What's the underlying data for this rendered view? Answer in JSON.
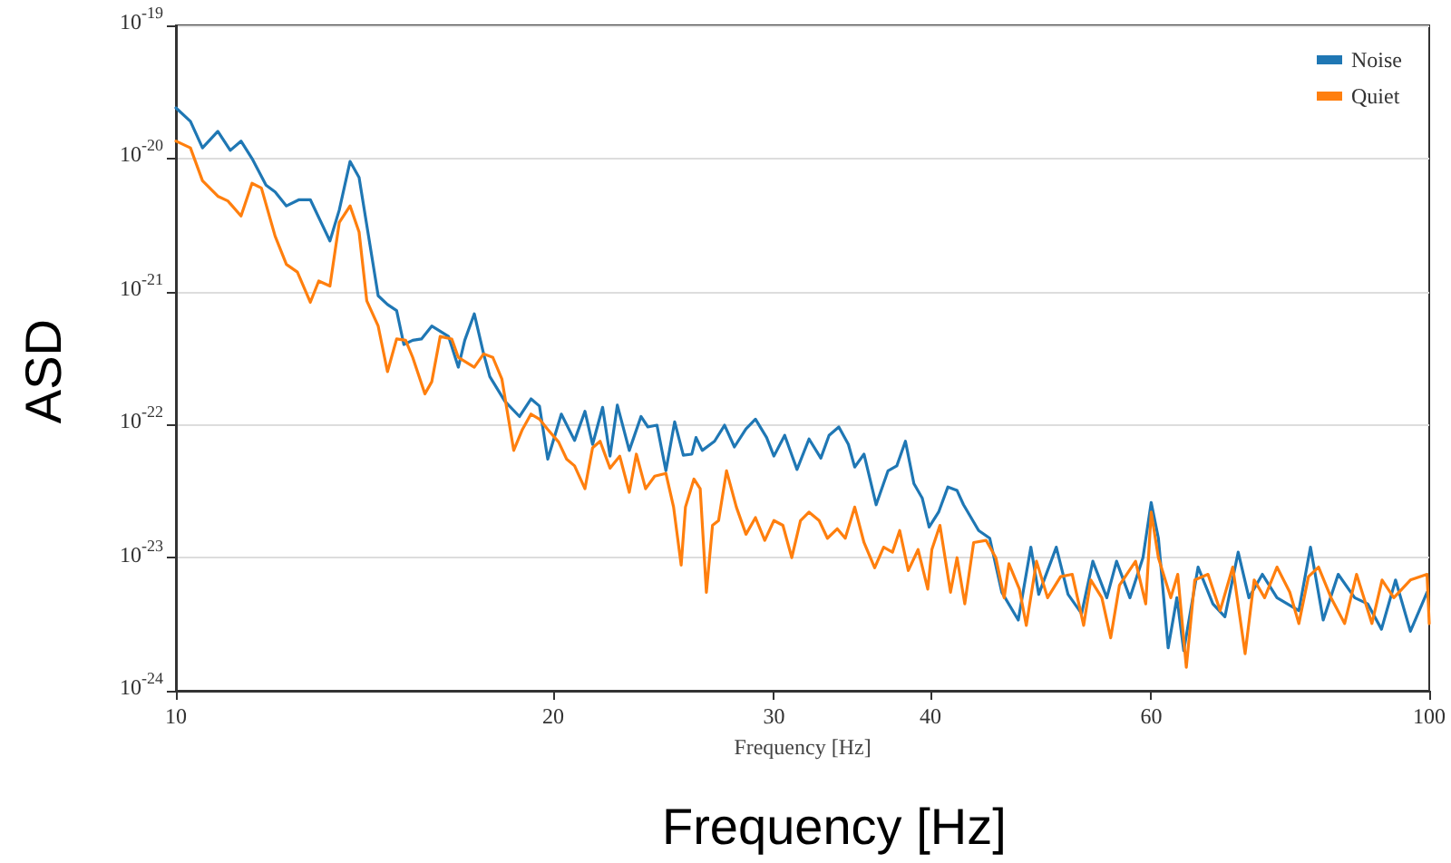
{
  "chart_data": {
    "type": "line",
    "xlabel": "Frequency [Hz]",
    "ylabel": "ASD",
    "annotations": [
      "Frequency [Hz]"
    ],
    "log": "xy",
    "grid": "y",
    "legend": "top right",
    "line_style": "solid",
    "marker": "none",
    "xlim": [
      10,
      100
    ],
    "xticks": [
      10,
      20,
      30,
      40,
      60,
      100
    ],
    "ylim": [
      1e-24,
      1e-19
    ],
    "yticks": [
      {
        "value": 1e-24,
        "label": "10$^{-24}$"
      },
      {
        "value": 1e-23,
        "label": "10$^{-23}$"
      },
      {
        "value": 1e-22,
        "label": "10$^{-22}$"
      },
      {
        "value": 1e-21,
        "label": "10$^{-21}$"
      },
      {
        "value": 1e-20,
        "label": "10$^{-20}$"
      },
      {
        "value": 1e-19,
        "label": "10$^{-19}$"
      }
    ],
    "series": [
      {
        "name": "Noise",
        "color": "#1f77b4",
        "x": [
          10,
          10.27,
          10.5,
          10.8,
          11.05,
          11.27,
          11.5,
          11.8,
          12.0,
          12.25,
          12.54,
          12.8,
          13.27,
          13.5,
          13.77,
          14.0,
          14.5,
          14.75,
          15.0,
          15.2,
          15.45,
          15.7,
          16.0,
          16.5,
          16.8,
          17.0,
          17.3,
          17.6,
          17.8,
          18.3,
          18.8,
          19.2,
          19.5,
          19.8,
          20.3,
          20.8,
          21.2,
          21.5,
          21.9,
          22.2,
          22.5,
          23.0,
          23.5,
          23.8,
          24.2,
          24.6,
          25.0,
          25.4,
          25.8,
          26.0,
          26.3,
          26.9,
          27.4,
          27.9,
          28.5,
          29.0,
          29.6,
          30.0,
          30.6,
          31.3,
          32.0,
          32.7,
          33.2,
          33.8,
          34.4,
          34.8,
          35.4,
          36.2,
          37.0,
          37.6,
          38.2,
          38.8,
          39.4,
          39.9,
          40.6,
          41.3,
          42.0,
          42.5,
          43.7,
          44.6,
          45.6,
          47.0,
          48.1,
          48.8,
          50.4,
          51.5,
          52.8,
          53.9,
          55.3,
          56.3,
          57.7,
          59.1,
          60.0,
          60.8,
          61.9,
          62.9,
          63.7,
          65.4,
          67.2,
          68.7,
          70.4,
          71.8,
          73.6,
          75.6,
          78.7,
          80.4,
          82.3,
          84.6,
          87.2,
          89.3,
          91.6,
          94.0,
          96.6,
          99.6
        ],
        "values": [
          2.4e-20,
          1.9e-20,
          1.2e-20,
          1.6e-20,
          1.15e-20,
          1.35e-20,
          1e-20,
          6.3e-21,
          5.6e-21,
          4.4e-21,
          4.9e-21,
          4.9e-21,
          2.4e-21,
          4.1e-21,
          9.5e-21,
          7.2e-21,
          9.3e-22,
          8e-22,
          7.2e-22,
          4e-22,
          4.3e-22,
          4.4e-22,
          5.5e-22,
          4.6e-22,
          2.7e-22,
          4.3e-22,
          6.8e-22,
          3.4e-22,
          2.3e-22,
          1.5e-22,
          1.15e-22,
          1.56e-22,
          1.38e-22,
          5.5e-23,
          1.2e-22,
          7.6e-23,
          1.26e-22,
          7.1e-23,
          1.35e-22,
          5.8e-23,
          1.4e-22,
          6.4e-23,
          1.15e-22,
          9.6e-23,
          9.9e-23,
          4.5e-23,
          1.05e-22,
          5.9e-23,
          6e-23,
          8e-23,
          6.4e-23,
          7.5e-23,
          9.9e-23,
          6.8e-23,
          9.3e-23,
          1.1e-22,
          8e-23,
          5.8e-23,
          8.3e-23,
          4.6e-23,
          7.8e-23,
          5.6e-23,
          8.3e-23,
          9.6e-23,
          7.1e-23,
          4.8e-23,
          6e-23,
          2.5e-23,
          4.5e-23,
          4.9e-23,
          7.5e-23,
          3.6e-23,
          2.8e-23,
          1.7e-23,
          2.2e-23,
          3.4e-23,
          3.2e-23,
          2.5e-23,
          1.6e-23,
          1.4e-23,
          5.5e-24,
          3.4e-24,
          1.2e-23,
          5.3e-24,
          1.2e-23,
          5.3e-24,
          3.8e-24,
          9.4e-24,
          5e-24,
          9.4e-24,
          5e-24,
          1e-23,
          2.6e-23,
          1.4e-23,
          2.1e-24,
          5e-24,
          2e-24,
          8.5e-24,
          4.5e-24,
          3.6e-24,
          1.1e-23,
          5e-24,
          7.5e-24,
          5e-24,
          4e-24,
          1.2e-23,
          3.4e-24,
          7.5e-24,
          5e-24,
          4.5e-24,
          2.9e-24,
          6.8e-24,
          2.8e-24,
          5.5e-24
        ]
      },
      {
        "name": "Quiet",
        "color": "#ff7f0e",
        "x": [
          10,
          10.27,
          10.5,
          10.8,
          11.0,
          11.27,
          11.5,
          11.7,
          12.0,
          12.25,
          12.5,
          12.8,
          13.0,
          13.27,
          13.5,
          13.77,
          14.0,
          14.2,
          14.5,
          14.75,
          15.0,
          15.25,
          15.45,
          15.8,
          16.0,
          16.25,
          16.6,
          16.8,
          17.3,
          17.6,
          17.9,
          18.2,
          18.6,
          18.9,
          19.2,
          19.5,
          19.8,
          20.2,
          20.5,
          20.8,
          21.2,
          21.5,
          21.8,
          22.2,
          22.6,
          23.0,
          23.3,
          23.7,
          24.1,
          24.6,
          24.95,
          25.3,
          25.5,
          25.9,
          26.2,
          26.5,
          26.8,
          27.1,
          27.5,
          28.0,
          28.5,
          29.0,
          29.5,
          30.0,
          30.5,
          31.0,
          31.5,
          32.0,
          32.6,
          33.1,
          33.7,
          34.2,
          34.8,
          35.4,
          36.1,
          36.7,
          37.3,
          37.8,
          38.4,
          39.1,
          39.8,
          40.1,
          40.7,
          41.5,
          42.0,
          42.6,
          43.3,
          44.3,
          45.1,
          45.8,
          46.2,
          47.1,
          47.7,
          48.6,
          49.6,
          50.8,
          51.9,
          53.0,
          53.7,
          54.8,
          55.7,
          56.6,
          58.3,
          59.4,
          60.0,
          60.8,
          62.2,
          63.0,
          64.0,
          65.0,
          66.6,
          68.1,
          69.7,
          71.3,
          72.5,
          73.9,
          75.6,
          77.4,
          78.7,
          80.1,
          81.6,
          83.5,
          85.6,
          87.5,
          90.0,
          91.7,
          93.7,
          96.6,
          99.6,
          100
        ],
        "values": [
          1.35e-20,
          1.2e-20,
          6.8e-21,
          5.2e-21,
          4.8e-21,
          3.7e-21,
          6.5e-21,
          6e-21,
          2.6e-21,
          1.6e-21,
          1.4e-21,
          8.3e-22,
          1.2e-21,
          1.1e-21,
          3.3e-21,
          4.4e-21,
          2.8e-21,
          8.5e-22,
          5.5e-22,
          2.5e-22,
          4.4e-22,
          4.3e-22,
          3.2e-22,
          1.7e-22,
          2.1e-22,
          4.6e-22,
          4.4e-22,
          3.2e-22,
          2.7e-22,
          3.4e-22,
          3.2e-22,
          2.2e-22,
          6.4e-23,
          9.2e-23,
          1.2e-22,
          1.1e-22,
          9.2e-23,
          7.4e-23,
          5.5e-23,
          4.9e-23,
          3.3e-23,
          6.7e-23,
          7.5e-23,
          4.7e-23,
          5.8e-23,
          3.1e-23,
          6e-23,
          3.3e-23,
          4.1e-23,
          4.3e-23,
          2.4e-23,
          8.8e-24,
          2.4e-23,
          3.9e-23,
          3.3e-23,
          5.5e-24,
          1.75e-23,
          1.9e-23,
          4.5e-23,
          2.4e-23,
          1.5e-23,
          2e-23,
          1.35e-23,
          1.9e-23,
          1.75e-23,
          1e-23,
          1.9e-23,
          2.2e-23,
          1.9e-23,
          1.4e-23,
          1.65e-23,
          1.4e-23,
          2.4e-23,
          1.3e-23,
          8.4e-24,
          1.2e-23,
          1.1e-23,
          1.6e-23,
          8e-24,
          1.15e-23,
          5.8e-24,
          1.15e-23,
          1.75e-23,
          5.5e-24,
          1e-23,
          4.5e-24,
          1.3e-23,
          1.35e-23,
          1e-23,
          5e-24,
          9e-24,
          5.8e-24,
          3.1e-24,
          9.4e-24,
          5e-24,
          7.2e-24,
          7.5e-24,
          3.1e-24,
          6.8e-24,
          5e-24,
          2.5e-24,
          6.2e-24,
          9.4e-24,
          4.5e-24,
          2.2e-23,
          1e-23,
          5e-24,
          7.5e-24,
          1.5e-24,
          6.8e-24,
          7.5e-24,
          4e-24,
          8.5e-24,
          1.9e-24,
          6.8e-24,
          5e-24,
          8.5e-24,
          5.5e-24,
          3.2e-24,
          7.2e-24,
          8.5e-24,
          5e-24,
          3.2e-24,
          7.5e-24,
          3.2e-24,
          6.8e-24,
          5e-24,
          6.8e-24,
          7.5e-24,
          3.2e-24
        ]
      }
    ]
  }
}
